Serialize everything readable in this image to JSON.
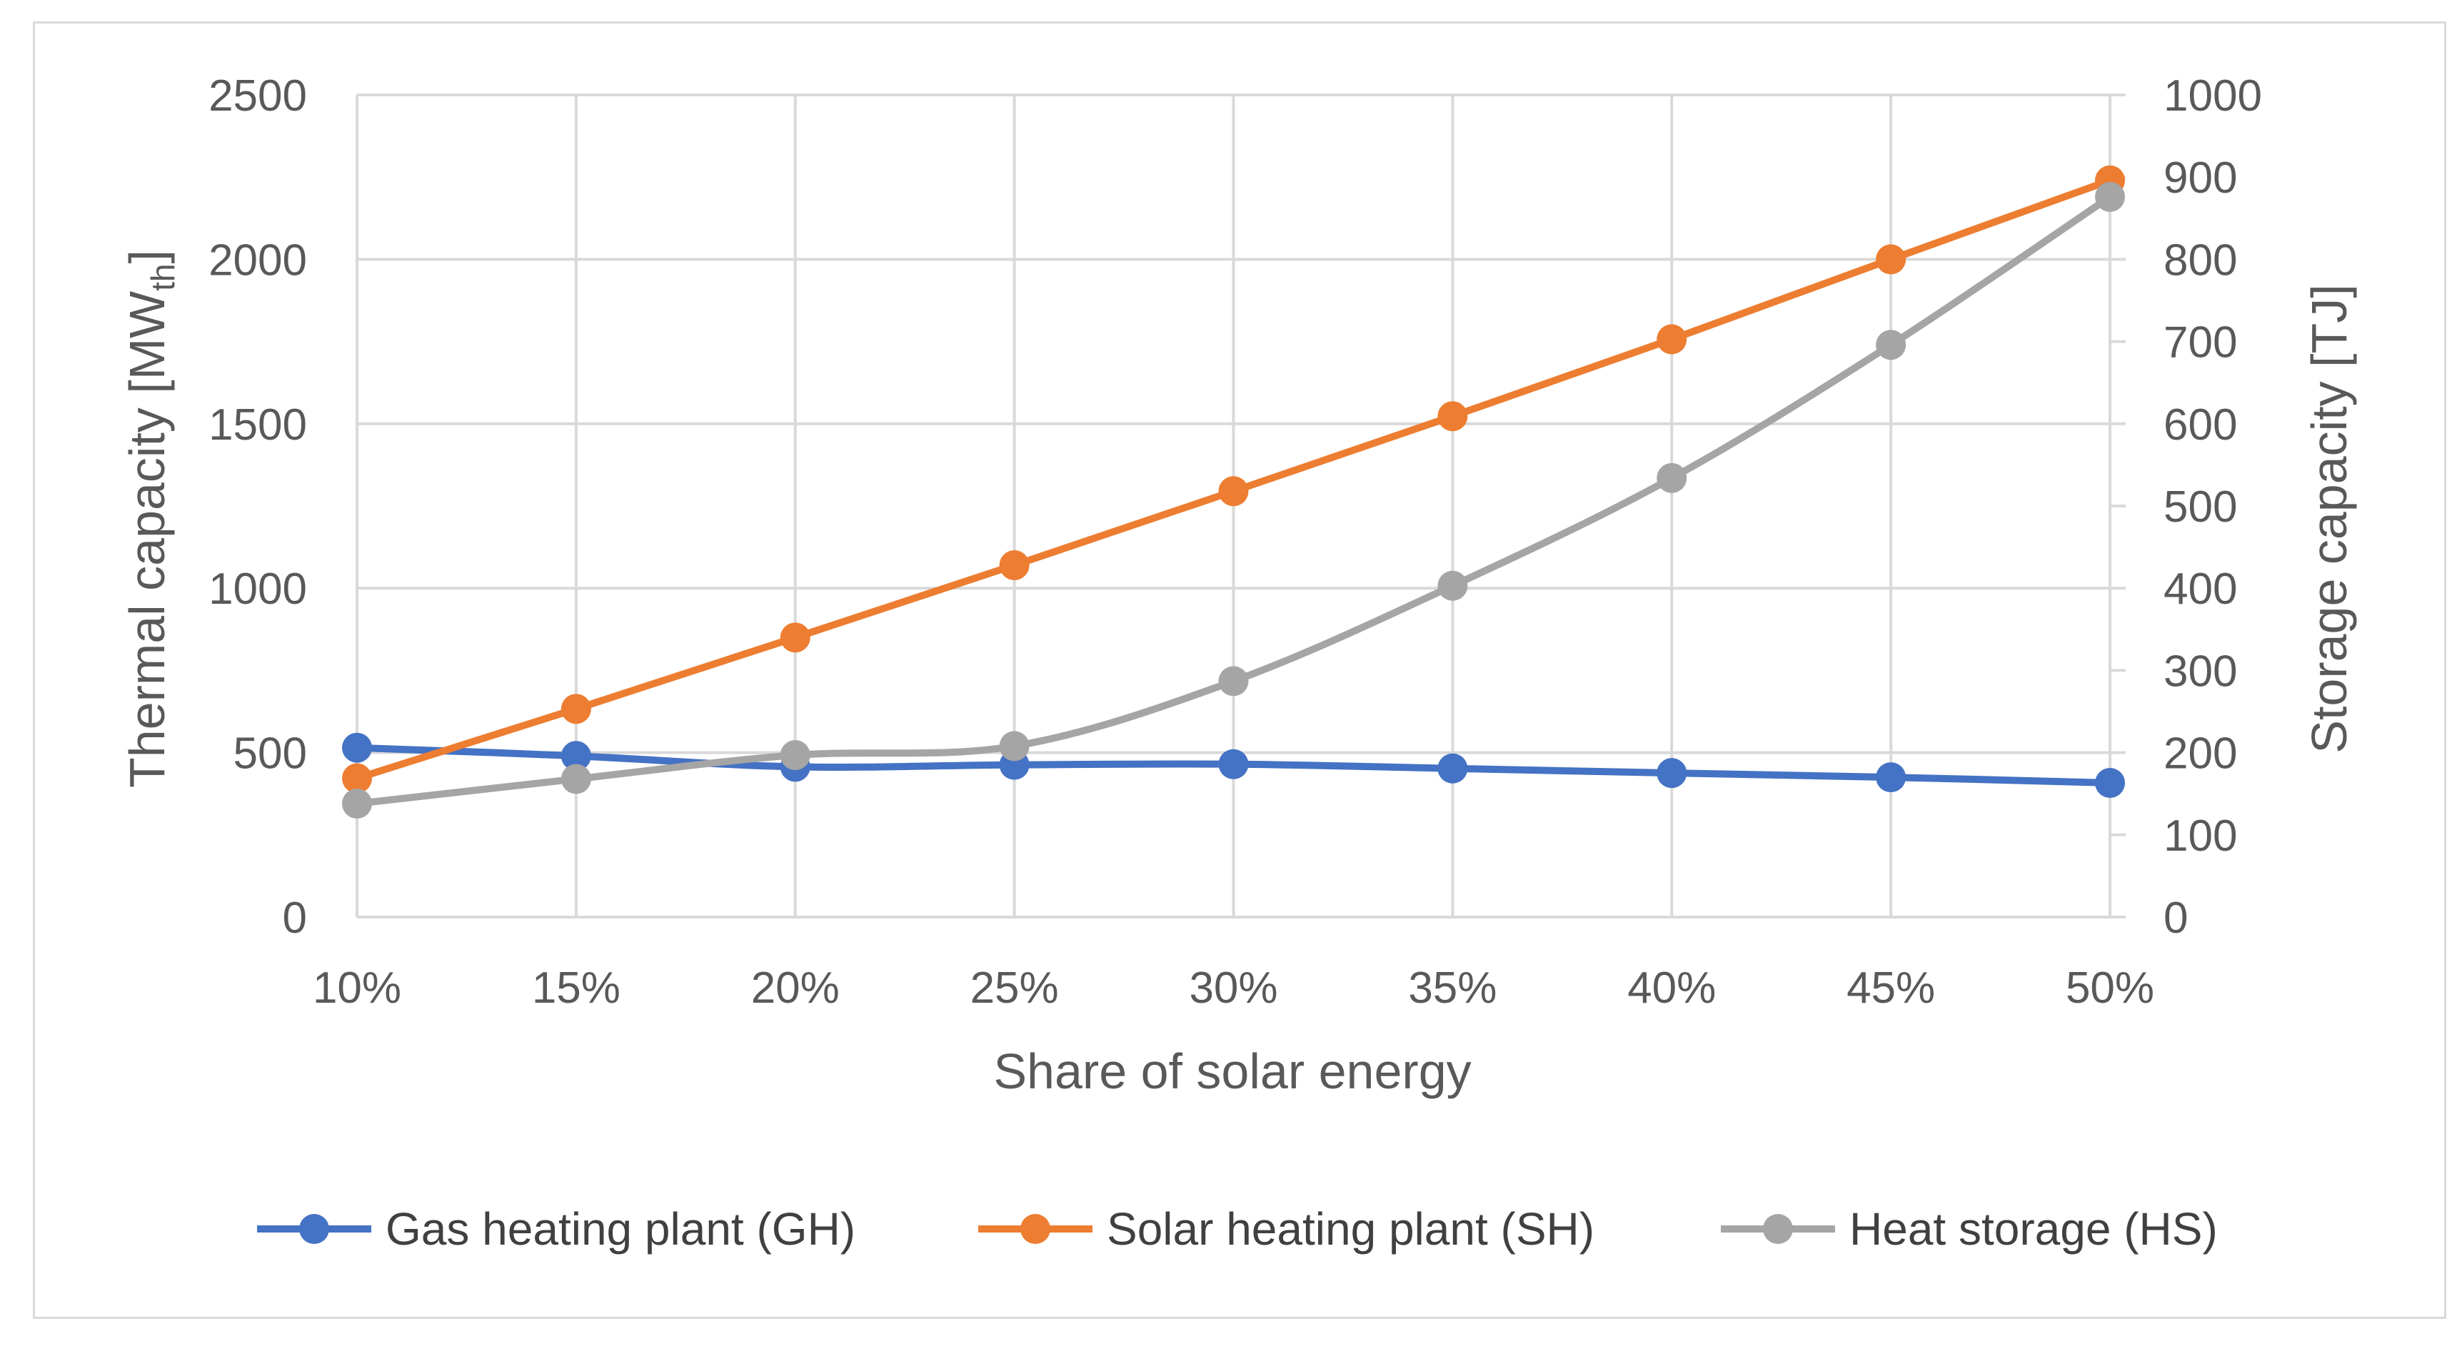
{
  "chart_data": {
    "type": "line",
    "x": [
      "10%",
      "15%",
      "20%",
      "25%",
      "30%",
      "35%",
      "40%",
      "45%",
      "50%"
    ],
    "xlabel": "Share of solar energy",
    "ylabel": {
      "main": "Thermal capacity [MW",
      "sub": "th",
      "end": "]"
    },
    "y2label": "Storage capacity [TJ]",
    "ylim": [
      0,
      2500
    ],
    "y2lim": [
      0,
      1000
    ],
    "yticks": [
      "0",
      "500",
      "1000",
      "1500",
      "2000",
      "2500"
    ],
    "y2ticks": [
      "0",
      "100",
      "200",
      "300",
      "400",
      "500",
      "600",
      "700",
      "800",
      "900",
      "1000"
    ],
    "grid": true,
    "legend_position": "bottom",
    "series": [
      {
        "name": "Gas heating plant (GH)",
        "axis": "left",
        "color": "#4472C4",
        "smooth": true,
        "values": [
          515,
          490,
          457,
          463,
          465,
          452,
          438,
          425,
          408
        ]
      },
      {
        "name": "Solar heating plant (SH)",
        "axis": "left",
        "color": "#ED7D31",
        "smooth": false,
        "values": [
          422,
          633,
          850,
          1070,
          1295,
          1523,
          1757,
          2000,
          2240
        ]
      },
      {
        "name": "Heat storage (HS)",
        "axis": "right",
        "color": "#A5A5A5",
        "smooth": true,
        "values": [
          138,
          168,
          197,
          208,
          287,
          403,
          534,
          696,
          876
        ]
      }
    ]
  }
}
